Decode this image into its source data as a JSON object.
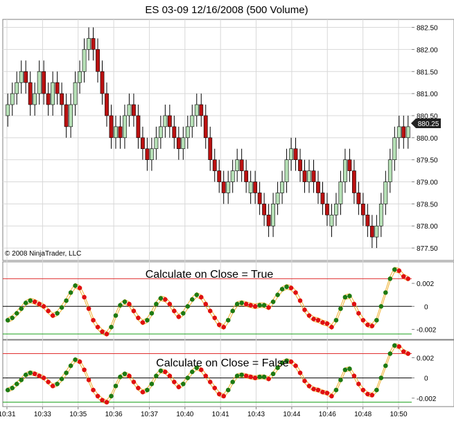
{
  "chart_data": {
    "type": "candlestick",
    "title": "ES 03-09  12/16/2008 (500 Volume)",
    "copyright": "© 2008 NinjaTrader, LLC",
    "last_price_label": "880.25",
    "price_axis": {
      "ylim": [
        877.25,
        882.65
      ],
      "ticks": [
        "882.50",
        "882.00",
        "881.50",
        "881.00",
        "880.50",
        "880.00",
        "879.50",
        "879.00",
        "878.50",
        "878.00",
        "877.50"
      ]
    },
    "x_ticks": [
      "10:31",
      "10:33",
      "10:35",
      "10:36",
      "10:37",
      "10:40",
      "10:41",
      "10:43",
      "10:44",
      "10:46",
      "10:48",
      "10:50"
    ],
    "close_series": [
      880.75,
      881.0,
      881.25,
      881.5,
      881.25,
      880.75,
      881.0,
      881.5,
      881.0,
      880.75,
      881.25,
      881.0,
      880.75,
      880.25,
      880.75,
      881.25,
      881.5,
      882.0,
      882.25,
      882.0,
      881.5,
      881.0,
      880.5,
      880.0,
      880.25,
      880.0,
      880.5,
      880.75,
      880.5,
      880.0,
      879.75,
      879.5,
      879.75,
      880.0,
      880.25,
      880.5,
      880.25,
      880.0,
      879.75,
      880.0,
      880.25,
      880.5,
      880.75,
      880.5,
      880.0,
      879.5,
      879.25,
      879.0,
      878.75,
      879.0,
      879.25,
      879.5,
      879.25,
      879.0,
      879.0,
      878.75,
      878.5,
      878.25,
      878.0,
      878.5,
      878.75,
      879.0,
      879.5,
      879.75,
      879.5,
      879.25,
      879.0,
      879.25,
      879.0,
      878.75,
      878.5,
      878.25,
      878.25,
      878.5,
      879.0,
      879.5,
      879.25,
      878.75,
      878.5,
      878.25,
      878.0,
      877.75,
      878.0,
      878.5,
      879.0,
      879.5,
      880.0,
      880.25,
      880.0,
      880.25
    ],
    "panels": [
      {
        "label": "Calculate on Close = True",
        "ylim": [
          -0.00275,
          0.00375
        ],
        "ticks": [
          "0.002",
          "0",
          "-0.002"
        ],
        "upper_line": 0.0024,
        "lower_line": -0.0024
      },
      {
        "label": "Calculate on Close = False",
        "ylim": [
          -0.0027,
          0.0036
        ],
        "ticks": [
          "0.002",
          "0",
          "-0.002"
        ],
        "upper_line": 0.0024,
        "lower_line": -0.0024
      }
    ],
    "oscillator_series": [
      -0.0012,
      -0.001,
      -0.0006,
      -0.0002,
      0.0003,
      0.0005,
      0.0004,
      0.0002,
      0,
      -0.0004,
      -0.0008,
      -0.0006,
      -0.0001,
      0.0005,
      0.0012,
      0.0018,
      0.0016,
      0.0008,
      -0.0002,
      -0.0012,
      -0.0018,
      -0.0022,
      -0.0024,
      -0.0018,
      -0.0008,
      0.0001,
      0.0004,
      0.0002,
      -0.0004,
      -0.001,
      -0.0014,
      -0.0012,
      -0.0006,
      0.0002,
      0.0007,
      0.0006,
      0.0002,
      -0.0004,
      -0.0009,
      -0.0006,
      0,
      0.0006,
      0.001,
      0.0008,
      0.0002,
      -0.0004,
      -0.001,
      -0.0016,
      -0.0018,
      -0.0012,
      -0.0004,
      0.0002,
      0.0003,
      0.0002,
      0.0001,
      0,
      0.0001,
      0.0001,
      -0.0001,
      0.0004,
      0.001,
      0.0015,
      0.0017,
      0.0016,
      0.0012,
      0.0005,
      -0.0003,
      -0.0008,
      -0.0011,
      -0.0012,
      -0.0014,
      -0.0015,
      -0.0018,
      -0.0012,
      -0.0002,
      0.0008,
      0.0009,
      0.0002,
      -0.0006,
      -0.0012,
      -0.0016,
      -0.0017,
      -0.0012,
      0,
      0.0012,
      0.0024,
      0.0032,
      0.0031,
      0.0026,
      0.0024
    ],
    "colors": {
      "up_candle": "#b7e1b7",
      "down_candle": "#bb1111",
      "up_dot": "#1e7a12",
      "down_dot": "#e01010",
      "upper_line": "#e03030",
      "lower_line": "#1aa01a",
      "zero_line": "#000000",
      "envelope": "#f0b030",
      "gridline": "#d8d8d8",
      "price_marker": "#222222"
    }
  }
}
